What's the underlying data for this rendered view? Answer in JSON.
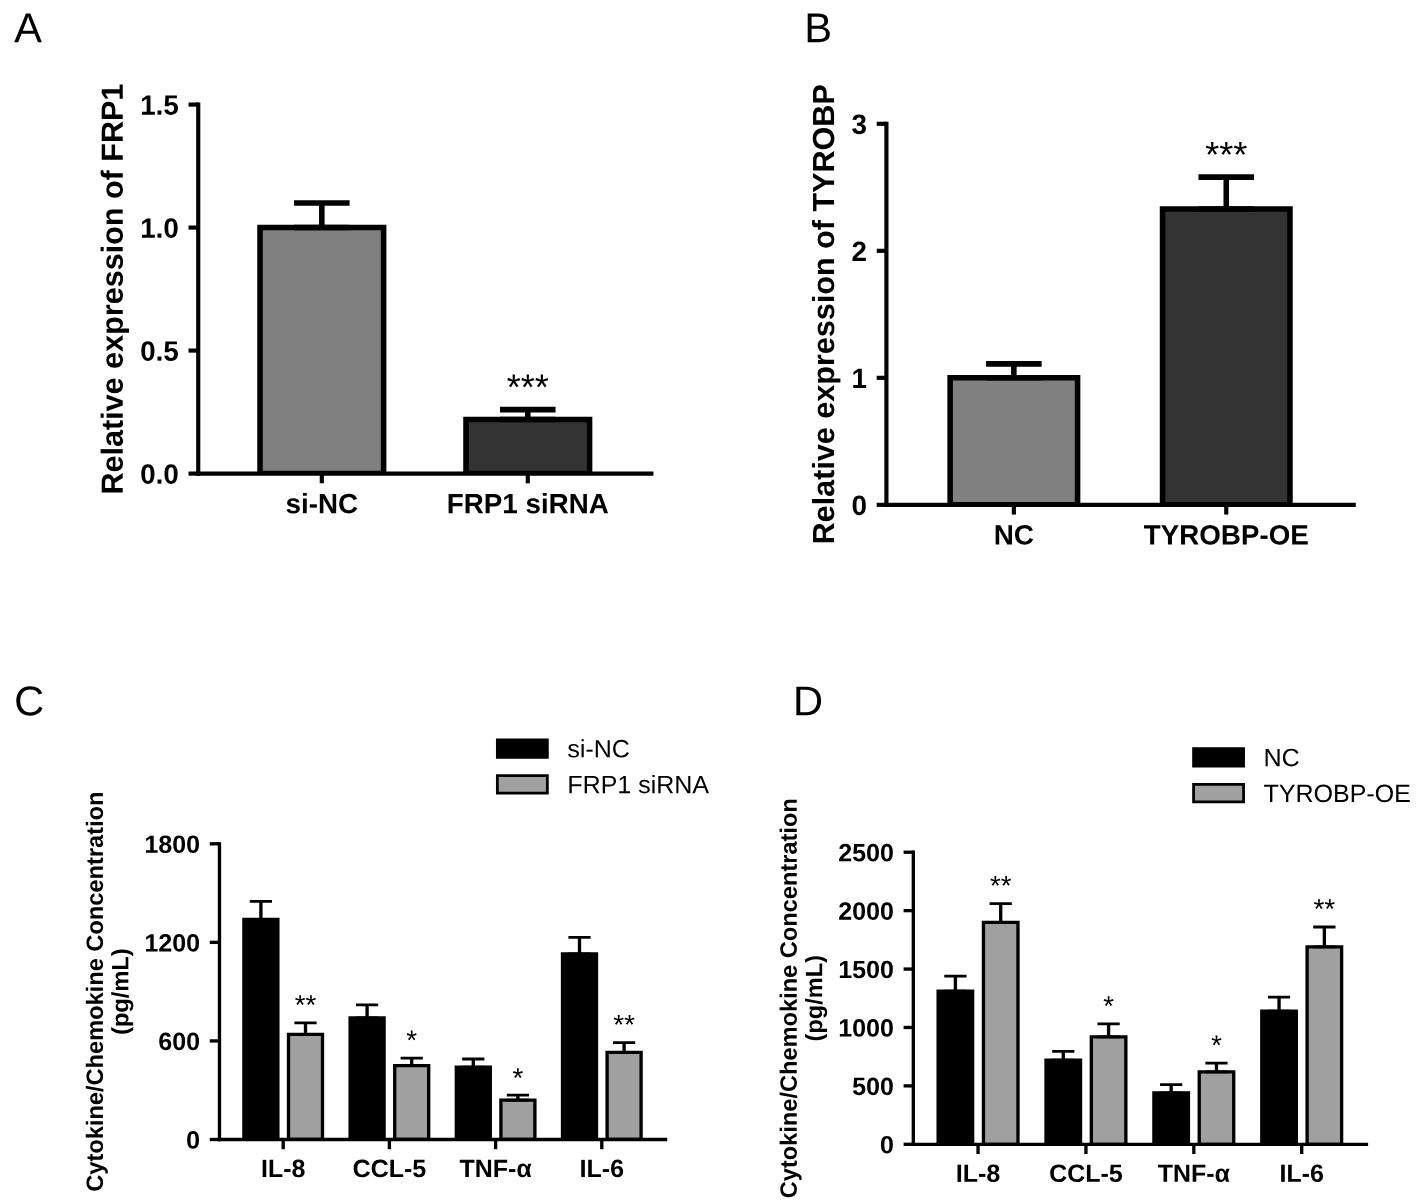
{
  "chart_data": [
    {
      "type": "bar",
      "title": "A",
      "ylabel": "Relative expression of FRP1",
      "categories": [
        "si-NC",
        "FRP1 siRNA"
      ],
      "values": [
        1.0,
        0.22
      ],
      "errors": [
        0.1,
        0.04
      ],
      "colors": [
        "#808080",
        "#333333"
      ],
      "ylim": [
        0,
        1.5
      ],
      "yticks": [
        {
          "value": 0,
          "label": "0.0"
        },
        0.5,
        {
          "value": 1,
          "label": "1.0"
        },
        1.5
      ],
      "grid": false,
      "annotations": [
        {
          "text": "***",
          "x": "FRP1 siRNA",
          "y": 0.26
        }
      ]
    },
    {
      "type": "bar",
      "title": "B",
      "ylabel": "Relative expression of TYROBP",
      "categories": [
        "NC",
        "TYROBP-OE"
      ],
      "values": [
        1.0,
        2.33
      ],
      "errors": [
        0.11,
        0.25
      ],
      "colors": [
        "#808080",
        "#333333"
      ],
      "ylim": [
        0,
        3
      ],
      "yticks": [
        0,
        1,
        2,
        3
      ],
      "grid": false,
      "annotations": [
        {
          "text": "***",
          "x": "TYROBP-OE",
          "y": 2.58
        }
      ]
    },
    {
      "type": "bar",
      "title": "C",
      "ylabel": "Cytokine/Chemokine Concentration\n(pg/mL)",
      "categories": [
        "IL-8",
        "CCL-5",
        "TNF-α",
        "IL-6"
      ],
      "series": [
        {
          "name": "si-NC",
          "color": "#000000",
          "values": [
            1340,
            740,
            440,
            1130
          ],
          "errors": [
            110,
            80,
            50,
            100
          ]
        },
        {
          "name": "FRP1 siRNA",
          "color": "#a0a0a0",
          "values": [
            640,
            450,
            240,
            530
          ],
          "errors": [
            70,
            45,
            30,
            60
          ]
        }
      ],
      "ylim": [
        0,
        1800
      ],
      "yticks": [
        0,
        600,
        1200,
        1800
      ],
      "grid": false,
      "legend": "top right",
      "annotations": [
        {
          "text": "**",
          "x": "IL-8",
          "y": 710
        },
        {
          "text": "*",
          "x": "CCL-5",
          "y": 495
        },
        {
          "text": "*",
          "x": "TNF-α",
          "y": 265
        },
        {
          "text": "**",
          "x": "IL-6",
          "y": 590
        }
      ]
    },
    {
      "type": "bar",
      "title": "D",
      "ylabel": "Cytokine/Chemokine Concentration\n(pg/mL)",
      "categories": [
        "IL-8",
        "CCL-5",
        "TNF-α",
        "IL-6"
      ],
      "series": [
        {
          "name": "NC",
          "color": "#000000",
          "values": [
            1310,
            720,
            440,
            1140
          ],
          "errors": [
            130,
            75,
            70,
            120
          ]
        },
        {
          "name": "TYROBP-OE",
          "color": "#a0a0a0",
          "values": [
            1900,
            920,
            620,
            1690
          ],
          "errors": [
            160,
            110,
            75,
            170
          ]
        }
      ],
      "ylim": [
        0,
        2500
      ],
      "yticks": [
        0,
        500,
        1000,
        1500,
        2000,
        2500
      ],
      "grid": false,
      "legend": "top right",
      "annotations": [
        "**",
        "*",
        "*",
        "**"
      ]
    }
  ]
}
